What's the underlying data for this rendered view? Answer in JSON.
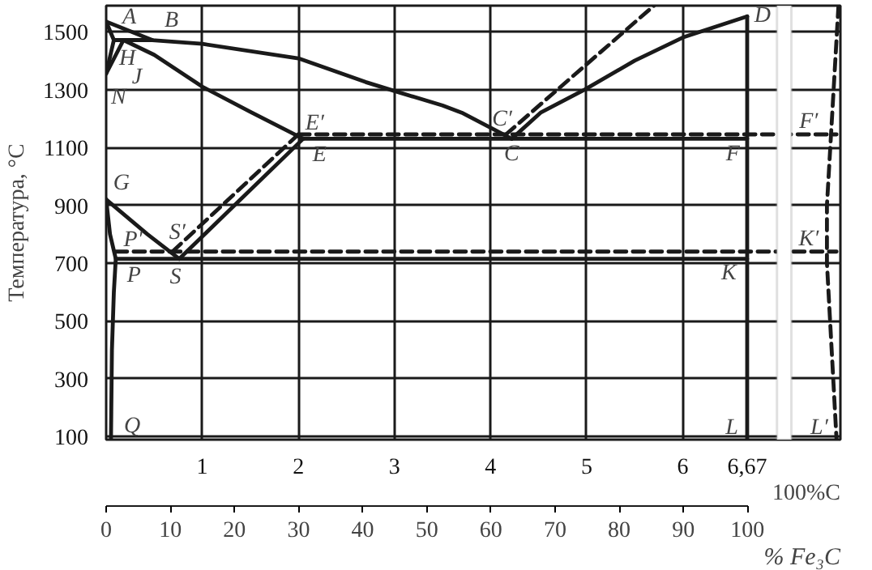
{
  "chart_data": {
    "type": "line",
    "ylabel": "Температура, °C",
    "x2label": "% Fe₃C",
    "xlim": [
      0,
      7.64
    ],
    "ylim": [
      90,
      1590
    ],
    "xticks": [
      1,
      2,
      3,
      4,
      5,
      6,
      {
        "value": 6.67,
        "label": "6,67"
      }
    ],
    "yticks": [
      100,
      300,
      500,
      700,
      900,
      1100,
      1300,
      1500
    ],
    "x2lim": [
      0,
      114.5
    ],
    "x2ticks": [
      0,
      10,
      20,
      30,
      40,
      50,
      60,
      70,
      80,
      90,
      100
    ],
    "grid": true,
    "color": "#1a1a1a",
    "series": [
      {
        "x": [
          0,
          0.48,
          1.0,
          2.0,
          2.7,
          3.0,
          3.5,
          3.7,
          4.22
        ],
        "values": [
          1535,
          1471,
          1458,
          1408,
          1326,
          1295,
          1245,
          1220,
          1130
        ],
        "line_style": "solid"
      },
      {
        "x": [
          0,
          0.08
        ],
        "values": [
          1535,
          1471
        ],
        "line_style": "solid"
      },
      {
        "x": [
          0.08,
          0.48
        ],
        "values": [
          1471,
          1471
        ],
        "line_style": "solid"
      },
      {
        "x": [
          0.08,
          0
        ],
        "values": [
          1471,
          1355
        ],
        "line_style": "solid"
      },
      {
        "x": [
          0.18,
          0
        ],
        "values": [
          1471,
          1355
        ],
        "line_style": "solid"
      },
      {
        "x": [
          0.18,
          0.5,
          1.0,
          1.5,
          2.05
        ],
        "values": [
          1471,
          1420,
          1310,
          1223,
          1130
        ],
        "line_style": "solid"
      },
      {
        "x": [
          4.22,
          4.52,
          4.98,
          5.5,
          6.0,
          6.67
        ],
        "values": [
          1130,
          1220,
          1300,
          1400,
          1480,
          1553
        ],
        "line_style": "solid"
      },
      {
        "x": [
          2.05,
          6.67
        ],
        "values": [
          1130,
          1130
        ],
        "line_style": "solid"
      },
      {
        "x": [
          2.05,
          0.76
        ],
        "values": [
          1130,
          715
        ],
        "line_style": "solid"
      },
      {
        "x": [
          0,
          0.43,
          0.76
        ],
        "values": [
          920,
          800,
          715
        ],
        "line_style": "solid"
      },
      {
        "x": [
          0,
          0.04,
          0.1,
          0.08,
          0.06,
          0.05
        ],
        "values": [
          920,
          800,
          715,
          600,
          400,
          90
        ],
        "line_style": "solid"
      },
      {
        "x": [
          0.1,
          6.67
        ],
        "values": [
          715,
          715
        ],
        "line_style": "solid"
      },
      {
        "x": [
          6.67,
          6.67
        ],
        "values": [
          1553,
          90
        ],
        "line_style": "solid"
      },
      {
        "x": [
          4.16,
          5.7
        ],
        "values": [
          1145,
          1590
        ],
        "line_style": "dashed"
      },
      {
        "x": [
          2.0,
          7.6
        ],
        "values": [
          1145,
          1145
        ],
        "line_style": "dashed"
      },
      {
        "x": [
          2.0,
          0.69
        ],
        "values": [
          1145,
          740
        ],
        "line_style": "dashed"
      },
      {
        "x": [
          0.1,
          7.6
        ],
        "values": [
          740,
          740
        ],
        "line_style": "dashed"
      },
      {
        "x": [
          7.62,
          7.5,
          7.5,
          7.6
        ],
        "values": [
          1590,
          900,
          700,
          90
        ],
        "line_style": "dashed"
      }
    ],
    "bands": [
      {
        "axis": "x",
        "from": 6.98,
        "to": 7.13,
        "color": "#ffffff"
      }
    ],
    "annotations": [
      "100%C",
      "A",
      "B",
      "H",
      "J",
      "N",
      "E′",
      "E",
      "C′",
      "C",
      "D",
      "F",
      "F′",
      "G",
      "P′",
      "P",
      "S′",
      "S",
      "K′",
      "K",
      "Q",
      "L",
      "L′"
    ]
  }
}
